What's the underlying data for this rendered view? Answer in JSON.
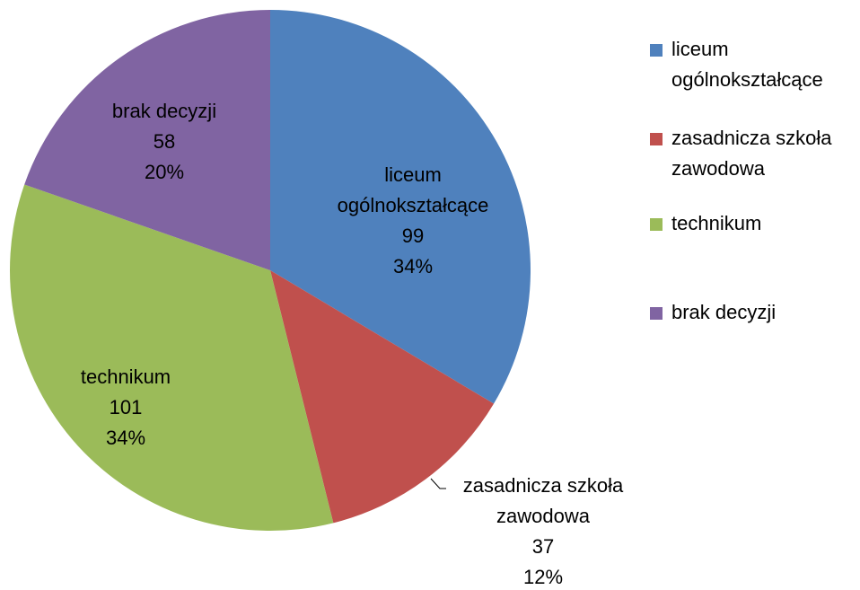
{
  "chart_data": {
    "type": "pie",
    "categories": [
      "liceum ogólnokształcące",
      "zasadnicza szkoła zawodowa",
      "technikum",
      "brak decyzji"
    ],
    "values": [
      99,
      37,
      101,
      58
    ],
    "percent_labels": [
      "34%",
      "12%",
      "34%",
      "20%"
    ],
    "colors": [
      "#4f81bd",
      "#c0504d",
      "#9bbb59",
      "#8064a2"
    ],
    "legend": "right"
  }
}
